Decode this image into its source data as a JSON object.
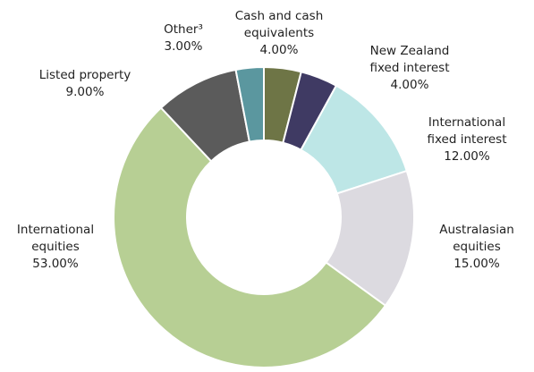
{
  "chart_data": {
    "type": "donut",
    "categories": [
      "Cash and cash equivalents",
      "New Zealand fixed interest",
      "International fixed interest",
      "Australasian equities",
      "International equities",
      "Listed property",
      "Other³"
    ],
    "values": [
      4,
      4,
      12,
      15,
      53,
      9,
      3
    ],
    "value_labels": [
      "4.00%",
      "4.00%",
      "12.00%",
      "15.00%",
      "53.00%",
      "9.00%",
      "3.00%"
    ],
    "colors": [
      "#6e7546",
      "#3f3a63",
      "#bde6e6",
      "#dcdae0",
      "#b7cf94",
      "#5b5b5b",
      "#5b979f"
    ]
  }
}
